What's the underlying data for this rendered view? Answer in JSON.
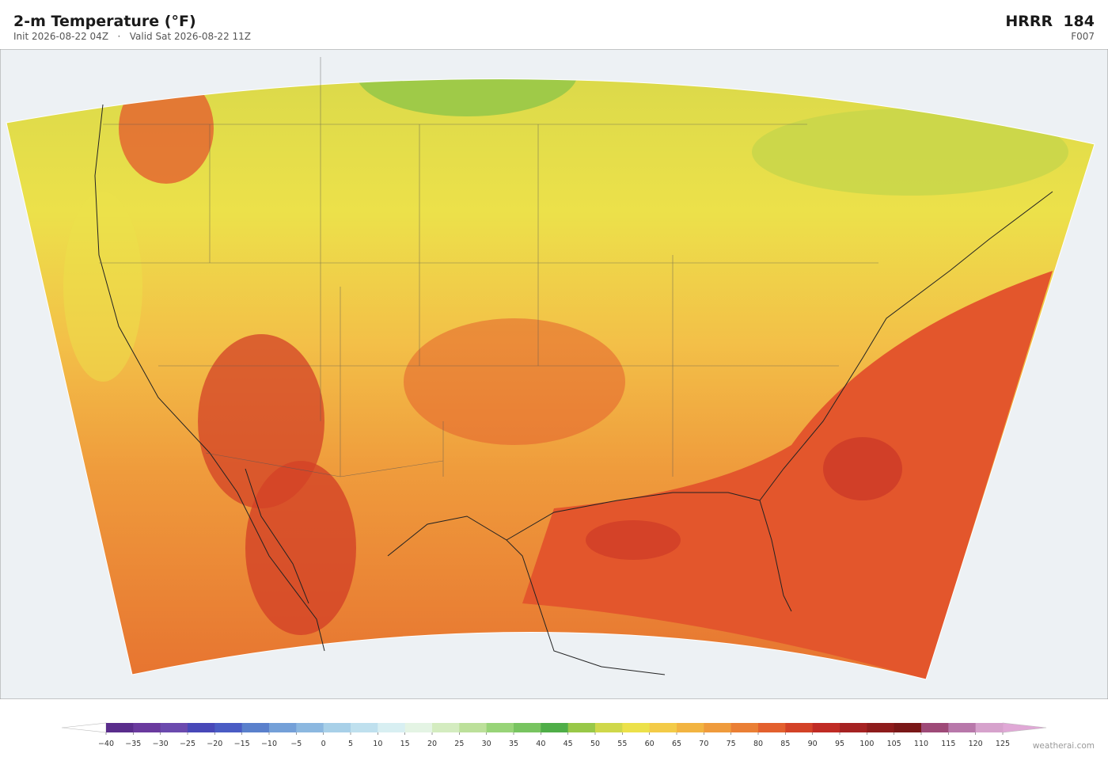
{
  "header": {
    "title": "2-m Temperature  (°F)",
    "subtitle": "Init 2026-08-22 04Z   ·   Valid Sat 2026-08-22 11Z",
    "model": "HRRR  184",
    "forecast_hour": "F007"
  },
  "colorbar": {
    "clim": [
      -40,
      125
    ],
    "ticks": [
      {
        "value": -40,
        "label": "−40"
      },
      {
        "value": -35,
        "label": "−35"
      },
      {
        "value": -30,
        "label": "−30"
      },
      {
        "value": -25,
        "label": "−25"
      },
      {
        "value": -20,
        "label": "−20"
      },
      {
        "value": -15,
        "label": "−15"
      },
      {
        "value": -10,
        "label": "−10"
      },
      {
        "value": -5,
        "label": "−5"
      },
      0,
      5,
      10,
      15,
      20,
      25,
      30,
      35,
      40,
      45,
      50,
      55,
      60,
      65,
      70,
      75,
      80,
      85,
      90,
      95,
      100,
      105,
      110,
      115,
      120,
      125
    ],
    "colors": [
      "#5a2d8c",
      "#6a3a9e",
      "#6b4aae",
      "#4848b8",
      "#4a5cc4",
      "#5a80cc",
      "#74a0d8",
      "#8cb8e0",
      "#a8d0e8",
      "#bfe0ee",
      "#d8eff2",
      "#e4f4e4",
      "#d4ecc0",
      "#bce09a",
      "#98d478",
      "#78c460",
      "#4fae48",
      "#98c848",
      "#cfd84a",
      "#ece14a",
      "#f3cb48",
      "#f2b441",
      "#ef9b3c",
      "#ea7f35",
      "#e3602e",
      "#d34227",
      "#c02b24",
      "#a52222",
      "#8e1c1c",
      "#7a1818",
      "#9e4a78",
      "#b878aa",
      "#d6a2cc"
    ],
    "under_color": "#ffffff",
    "over_color": "#e0a8d6"
  },
  "footer": {
    "credit": "weatherai.com"
  }
}
